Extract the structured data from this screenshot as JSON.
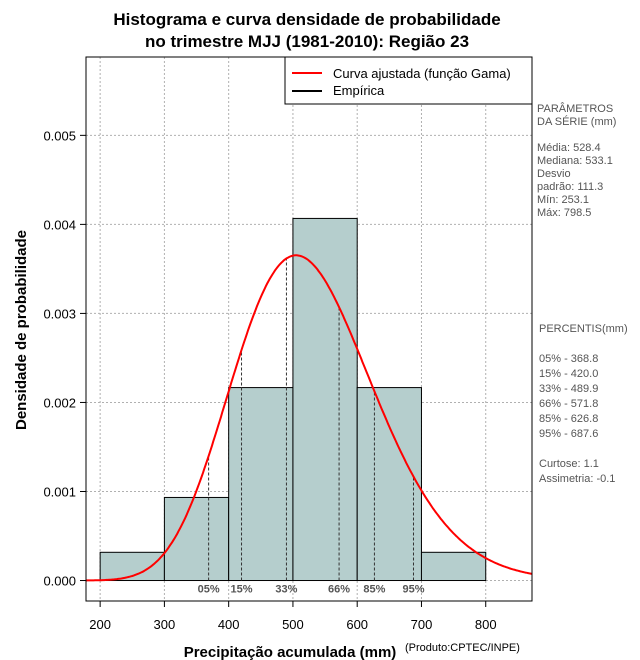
{
  "chart_data": {
    "type": "bar",
    "title_lines": [
      "Histograma e curva densidade de probabilidade",
      "no trimestre MJJ (1981-2010): Região 23"
    ],
    "xlabel": "Precipitação acumulada (mm)",
    "ylabel": "Densidade de probabilidade",
    "credit": "(Produto:CPTEC/INPE)",
    "xlim": [
      178,
      872
    ],
    "ylim": [
      -0.00023,
      0.00588
    ],
    "x_ticks": [
      200,
      300,
      400,
      500,
      600,
      700,
      800
    ],
    "x_tick_labels": [
      "200",
      "300",
      "400",
      "500",
      "600",
      "700",
      "800"
    ],
    "y_ticks": [
      0.0,
      0.001,
      0.002,
      0.003,
      0.004,
      0.005
    ],
    "y_tick_labels": [
      "0.000",
      "0.001",
      "0.002",
      "0.003",
      "0.004",
      "0.005"
    ],
    "grid": true,
    "bins": [
      {
        "start": 200,
        "end": 300,
        "density": 0.000317
      },
      {
        "start": 300,
        "end": 400,
        "density": 0.000933
      },
      {
        "start": 400,
        "end": 500,
        "density": 0.002167
      },
      {
        "start": 500,
        "end": 600,
        "density": 0.004067
      },
      {
        "start": 600,
        "end": 700,
        "density": 0.002167
      },
      {
        "start": 700,
        "end": 800,
        "density": 0.000317
      }
    ],
    "bar_color": "#b5cecd",
    "curve": {
      "name": "Curva ajustada (função Gama)",
      "color": "#ff0000",
      "mean": 528.4,
      "sd": 111.3
    },
    "empirical": {
      "name": "Empírica",
      "color": "#000000"
    },
    "legend_position": "top-right",
    "percentile_markers": [
      {
        "label": "05%",
        "value": 368.8
      },
      {
        "label": "15%",
        "value": 420.0
      },
      {
        "label": "33%",
        "value": 489.9
      },
      {
        "label": "66%",
        "value": 571.8
      },
      {
        "label": "85%",
        "value": 626.8
      },
      {
        "label": "95%",
        "value": 687.6
      }
    ]
  },
  "side_panel": {
    "params_lines": [
      "PARÂMETROS",
      " DA SÉRIE (mm)",
      "",
      "Média:  528.4",
      "Mediana:  533.1",
      "Desvio",
      "padrão:  111.3",
      "Mín:  253.1",
      "Máx:  798.5"
    ],
    "percentis_lines": [
      " PERCENTIS(mm)",
      "",
      "05% -   368.8",
      "15% -   420.0",
      "33% -   489.9",
      "66% -   571.8",
      "85% -   626.8",
      "95% -   687.6",
      "",
      "Curtose:  1.1",
      "Assimetria:  -0.1"
    ]
  }
}
